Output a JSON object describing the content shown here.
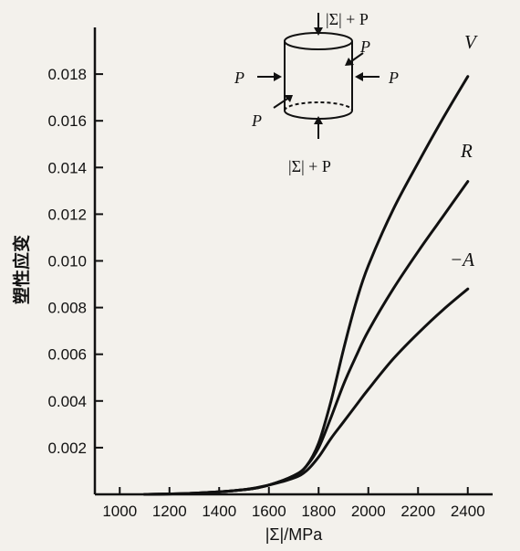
{
  "chart_data": {
    "type": "line",
    "title": "",
    "xlabel": "|Σ|/MPa",
    "ylabel": "塑性应变",
    "xlim": [
      900,
      2500
    ],
    "ylim": [
      0,
      0.02
    ],
    "xticks": [
      1000,
      1200,
      1400,
      1600,
      1800,
      2000,
      2200,
      2400
    ],
    "yticks": [
      0.002,
      0.004,
      0.006,
      0.008,
      0.01,
      0.012,
      0.014,
      0.016,
      0.018
    ],
    "ytick_labels": [
      "0.002",
      "0.004",
      "0.006",
      "0.008",
      "0.010",
      "0.012",
      "0.014",
      "0.016",
      "0.018"
    ],
    "grid": false,
    "series": [
      {
        "name": "V",
        "x": [
          1100,
          1300,
          1500,
          1600,
          1700,
          1750,
          1800,
          1850,
          1900,
          1950,
          2000,
          2100,
          2200,
          2300,
          2400
        ],
        "values": [
          0.0,
          5e-05,
          0.0002,
          0.0004,
          0.0008,
          0.0012,
          0.0022,
          0.004,
          0.0062,
          0.0082,
          0.0098,
          0.0122,
          0.0142,
          0.0161,
          0.0179
        ]
      },
      {
        "name": "R",
        "x": [
          1100,
          1300,
          1500,
          1600,
          1700,
          1750,
          1800,
          1850,
          1900,
          1950,
          2000,
          2100,
          2200,
          2300,
          2400
        ],
        "values": [
          0.0,
          5e-05,
          0.0002,
          0.0004,
          0.0008,
          0.0012,
          0.002,
          0.0033,
          0.0047,
          0.0059,
          0.007,
          0.0088,
          0.0104,
          0.0119,
          0.0134
        ]
      },
      {
        "name": "A",
        "label": "−A",
        "x": [
          1100,
          1300,
          1500,
          1600,
          1700,
          1750,
          1800,
          1850,
          1900,
          1950,
          2000,
          2100,
          2200,
          2300,
          2400
        ],
        "values": [
          0.0,
          5e-05,
          0.0002,
          0.0004,
          0.0007,
          0.001,
          0.0016,
          0.0024,
          0.0031,
          0.0038,
          0.0045,
          0.0058,
          0.0069,
          0.0079,
          0.0088
        ]
      }
    ],
    "inset": {
      "top_label": "|Σ| + P",
      "bottom_label": "|Σ| + P",
      "side_label": "P"
    }
  }
}
